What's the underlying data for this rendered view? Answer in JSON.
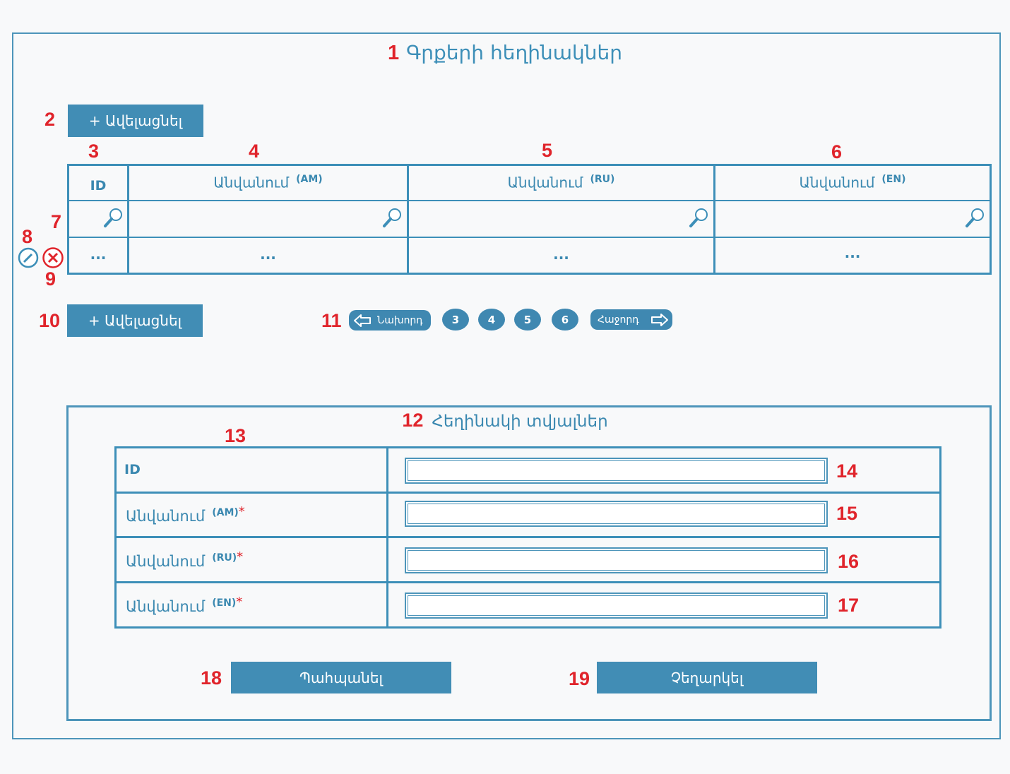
{
  "markers": [
    "1",
    "2",
    "3",
    "4",
    "5",
    "6",
    "7",
    "8",
    "9",
    "10",
    "11",
    "12",
    "13",
    "14",
    "15",
    "16",
    "17",
    "18",
    "19"
  ],
  "page_title": "Գրքերի հեղինակներ",
  "add_button_label": "+ Ավելացնել",
  "table": {
    "headers": {
      "id": "ID",
      "name": "Անվանում",
      "lang_am": "(AM)",
      "lang_ru": "(RU)",
      "lang_en": "(EN)"
    },
    "row_placeholder": "..."
  },
  "pagination": {
    "prev_label": "Նախորդ",
    "next_label": "Հաջորդ",
    "pages": [
      "3",
      "4",
      "5",
      "6"
    ]
  },
  "form": {
    "title": "Հեղինակի տվյալներ",
    "id_label": "ID",
    "name_label": "Անվանում",
    "lang_am": "(AM)",
    "lang_ru": "(RU)",
    "lang_en": "(EN)",
    "required_mark": "*",
    "save_label": "Պահպանել",
    "cancel_label": "Չեղարկել"
  },
  "colors": {
    "accent": "#418db5",
    "marker": "#e0242b",
    "background": "#f8f9fa"
  }
}
